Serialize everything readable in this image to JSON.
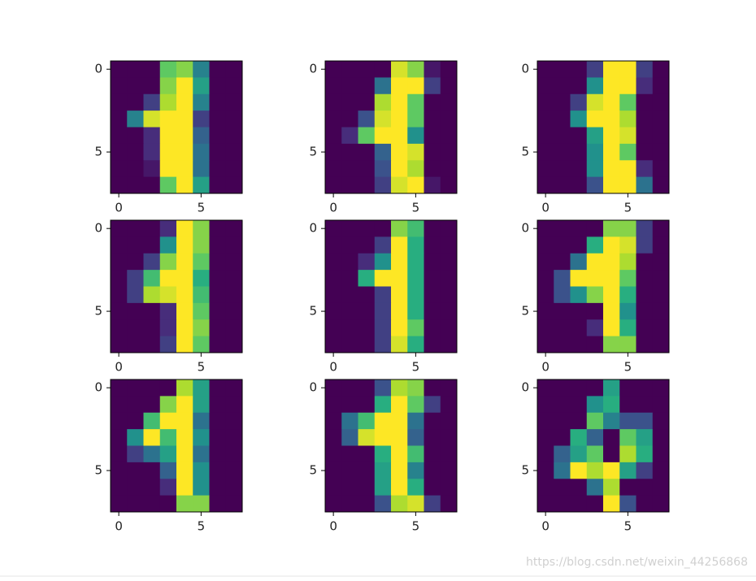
{
  "chart_data": [
    {
      "type": "heatmap",
      "colormap": "viridis",
      "xlim": [
        -0.5,
        7.5
      ],
      "ylim": [
        7.5,
        -0.5
      ],
      "xticks": [
        0,
        5
      ],
      "yticks": [
        0,
        5
      ],
      "values": [
        [
          0,
          0,
          0,
          12,
          13,
          7,
          0,
          0
        ],
        [
          0,
          0,
          0,
          13,
          16,
          9,
          0,
          0
        ],
        [
          0,
          0,
          3,
          14,
          16,
          7,
          0,
          0
        ],
        [
          0,
          7,
          15,
          16,
          16,
          3,
          0,
          0
        ],
        [
          0,
          0,
          2,
          16,
          16,
          5,
          0,
          0
        ],
        [
          0,
          0,
          2,
          16,
          16,
          6,
          0,
          0
        ],
        [
          0,
          0,
          1,
          16,
          16,
          6,
          0,
          0
        ],
        [
          0,
          0,
          0,
          12,
          16,
          9,
          0,
          0
        ]
      ]
    },
    {
      "type": "heatmap",
      "colormap": "viridis",
      "xlim": [
        -0.5,
        7.5
      ],
      "ylim": [
        7.5,
        -0.5
      ],
      "xticks": [
        0,
        5
      ],
      "yticks": [
        0,
        5
      ],
      "values": [
        [
          0,
          0,
          0,
          0,
          15,
          13,
          1,
          0
        ],
        [
          0,
          0,
          0,
          6,
          16,
          16,
          3,
          0
        ],
        [
          0,
          0,
          0,
          14,
          16,
          12,
          0,
          0
        ],
        [
          0,
          0,
          4,
          15,
          16,
          12,
          0,
          0
        ],
        [
          0,
          2,
          12,
          16,
          16,
          8,
          0,
          0
        ],
        [
          0,
          0,
          0,
          5,
          16,
          15,
          0,
          0
        ],
        [
          0,
          0,
          0,
          4,
          16,
          14,
          0,
          0
        ],
        [
          0,
          0,
          0,
          3,
          15,
          16,
          1,
          0
        ]
      ]
    },
    {
      "type": "heatmap",
      "colormap": "viridis",
      "xlim": [
        -0.5,
        7.5
      ],
      "ylim": [
        7.5,
        -0.5
      ],
      "xticks": [
        0,
        5
      ],
      "yticks": [
        0,
        5
      ],
      "values": [
        [
          0,
          0,
          0,
          3,
          16,
          16,
          3,
          0
        ],
        [
          0,
          0,
          0,
          8,
          16,
          16,
          2,
          0
        ],
        [
          0,
          0,
          3,
          15,
          16,
          12,
          0,
          0
        ],
        [
          0,
          0,
          8,
          16,
          16,
          14,
          0,
          0
        ],
        [
          0,
          0,
          0,
          9,
          16,
          15,
          0,
          0
        ],
        [
          0,
          0,
          0,
          8,
          16,
          12,
          0,
          0
        ],
        [
          0,
          0,
          0,
          8,
          16,
          16,
          2,
          0
        ],
        [
          0,
          0,
          0,
          4,
          16,
          16,
          6,
          0
        ]
      ]
    },
    {
      "type": "heatmap",
      "colormap": "viridis",
      "xlim": [
        -0.5,
        7.5
      ],
      "ylim": [
        7.5,
        -0.5
      ],
      "xticks": [
        0,
        5
      ],
      "yticks": [
        0,
        5
      ],
      "values": [
        [
          0,
          0,
          0,
          2,
          16,
          13,
          0,
          0
        ],
        [
          0,
          0,
          0,
          8,
          16,
          13,
          0,
          0
        ],
        [
          0,
          0,
          3,
          13,
          16,
          12,
          0,
          0
        ],
        [
          0,
          3,
          11,
          16,
          16,
          10,
          0,
          0
        ],
        [
          0,
          3,
          14,
          15,
          16,
          11,
          0,
          0
        ],
        [
          0,
          0,
          0,
          2,
          16,
          12,
          0,
          0
        ],
        [
          0,
          0,
          0,
          2,
          16,
          13,
          0,
          0
        ],
        [
          0,
          0,
          0,
          3,
          16,
          12,
          0,
          0
        ]
      ]
    },
    {
      "type": "heatmap",
      "colormap": "viridis",
      "xlim": [
        -0.5,
        7.5
      ],
      "ylim": [
        7.5,
        -0.5
      ],
      "xticks": [
        0,
        5
      ],
      "yticks": [
        0,
        5
      ],
      "values": [
        [
          0,
          0,
          0,
          0,
          13,
          11,
          0,
          0
        ],
        [
          0,
          0,
          0,
          3,
          16,
          10,
          0,
          0
        ],
        [
          0,
          0,
          2,
          8,
          16,
          10,
          0,
          0
        ],
        [
          0,
          0,
          10,
          16,
          16,
          10,
          0,
          0
        ],
        [
          0,
          0,
          0,
          3,
          16,
          10,
          0,
          0
        ],
        [
          0,
          0,
          0,
          3,
          16,
          10,
          0,
          0
        ],
        [
          0,
          0,
          0,
          3,
          16,
          12,
          0,
          0
        ],
        [
          0,
          0,
          0,
          3,
          15,
          10,
          0,
          0
        ]
      ]
    },
    {
      "type": "heatmap",
      "colormap": "viridis",
      "xlim": [
        -0.5,
        7.5
      ],
      "ylim": [
        7.5,
        -0.5
      ],
      "xticks": [
        0,
        5
      ],
      "yticks": [
        0,
        5
      ],
      "values": [
        [
          0,
          0,
          0,
          0,
          13,
          13,
          3,
          0
        ],
        [
          0,
          0,
          0,
          10,
          16,
          15,
          3,
          0
        ],
        [
          0,
          0,
          6,
          16,
          16,
          14,
          0,
          0
        ],
        [
          0,
          4,
          16,
          16,
          16,
          12,
          0,
          0
        ],
        [
          0,
          4,
          8,
          13,
          16,
          10,
          0,
          0
        ],
        [
          0,
          0,
          0,
          0,
          16,
          8,
          0,
          0
        ],
        [
          0,
          0,
          0,
          2,
          16,
          10,
          0,
          0
        ],
        [
          0,
          0,
          0,
          0,
          13,
          13,
          0,
          0
        ]
      ]
    },
    {
      "type": "heatmap",
      "colormap": "viridis",
      "xlim": [
        -0.5,
        7.5
      ],
      "ylim": [
        7.5,
        -0.5
      ],
      "xticks": [
        0,
        5
      ],
      "yticks": [
        0,
        5
      ],
      "values": [
        [
          0,
          0,
          0,
          0,
          14,
          9,
          0,
          0
        ],
        [
          0,
          0,
          0,
          13,
          16,
          9,
          0,
          0
        ],
        [
          0,
          0,
          11,
          16,
          16,
          6,
          0,
          0
        ],
        [
          0,
          8,
          16,
          11,
          16,
          8,
          0,
          0
        ],
        [
          0,
          3,
          6,
          9,
          16,
          6,
          0,
          0
        ],
        [
          0,
          0,
          0,
          5,
          16,
          8,
          0,
          0
        ],
        [
          0,
          0,
          0,
          2,
          16,
          8,
          0,
          0
        ],
        [
          0,
          0,
          0,
          0,
          13,
          13,
          0,
          0
        ]
      ]
    },
    {
      "type": "heatmap",
      "colormap": "viridis",
      "xlim": [
        -0.5,
        7.5
      ],
      "ylim": [
        7.5,
        -0.5
      ],
      "xticks": [
        0,
        5
      ],
      "yticks": [
        0,
        5
      ],
      "values": [
        [
          0,
          0,
          0,
          4,
          14,
          13,
          0,
          0
        ],
        [
          0,
          0,
          0,
          10,
          16,
          12,
          3,
          0
        ],
        [
          0,
          6,
          11,
          16,
          16,
          6,
          0,
          0
        ],
        [
          0,
          5,
          15,
          16,
          16,
          5,
          0,
          0
        ],
        [
          0,
          0,
          0,
          10,
          16,
          11,
          0,
          0
        ],
        [
          0,
          0,
          0,
          9,
          16,
          7,
          0,
          0
        ],
        [
          0,
          0,
          0,
          9,
          16,
          10,
          0,
          0
        ],
        [
          0,
          0,
          0,
          4,
          14,
          15,
          3,
          0
        ]
      ]
    },
    {
      "type": "heatmap",
      "colormap": "viridis",
      "xlim": [
        -0.5,
        7.5
      ],
      "ylim": [
        7.5,
        -0.5
      ],
      "xticks": [
        0,
        5
      ],
      "yticks": [
        0,
        5
      ],
      "values": [
        [
          0,
          0,
          0,
          0,
          9,
          0,
          0,
          0
        ],
        [
          0,
          0,
          0,
          8,
          10,
          0,
          0,
          0
        ],
        [
          0,
          0,
          0,
          12,
          7,
          4,
          4,
          0
        ],
        [
          0,
          0,
          10,
          5,
          0,
          12,
          9,
          0
        ],
        [
          0,
          5,
          9,
          12,
          0,
          14,
          10,
          0
        ],
        [
          0,
          6,
          16,
          14,
          16,
          9,
          3,
          0
        ],
        [
          0,
          0,
          0,
          6,
          14,
          0,
          0,
          0
        ],
        [
          0,
          0,
          0,
          0,
          16,
          4,
          0,
          0
        ]
      ]
    }
  ],
  "watermark": "https://blog.csdn.net/weixin_44256868"
}
